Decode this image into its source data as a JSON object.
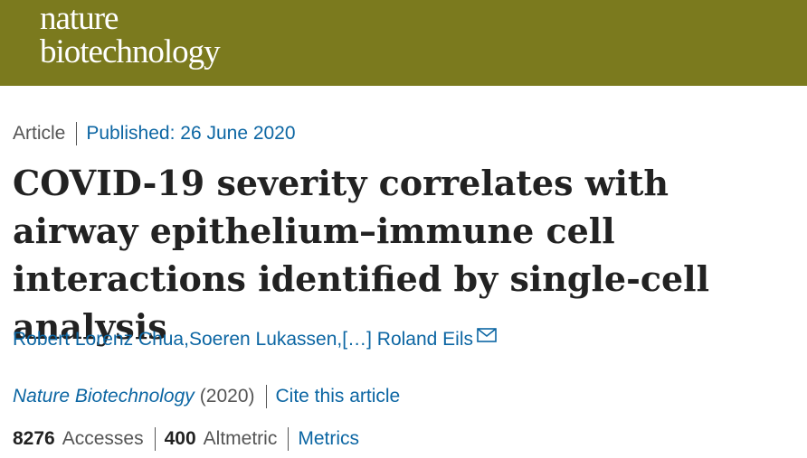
{
  "header": {
    "logo_line1": "nature",
    "logo_line2": "biotechnology",
    "brand_color": "#7b7a1e"
  },
  "article": {
    "type": "Article",
    "published": "Published: 26 June 2020",
    "title": "COVID-19 severity correlates with airway epithelium–immune cell interactions identified by single-cell analysis",
    "authors": {
      "first": "Robert Lorenz Chua",
      "second": "Soeren Lukassen",
      "ellipsis": "[…]",
      "last": "Roland Eils",
      "separator": ", "
    },
    "journal": "Nature Biotechnology",
    "year": "(2020)",
    "cite_label": "Cite this article"
  },
  "metrics": {
    "accesses_value": "8276",
    "accesses_label": "Accesses",
    "altmetric_value": "400",
    "altmetric_label": "Altmetric",
    "metrics_link": "Metrics"
  },
  "colors": {
    "link": "#0c66a3",
    "text": "#222222",
    "muted": "#555555"
  },
  "icons": {
    "author_contact": "envelope-icon"
  }
}
